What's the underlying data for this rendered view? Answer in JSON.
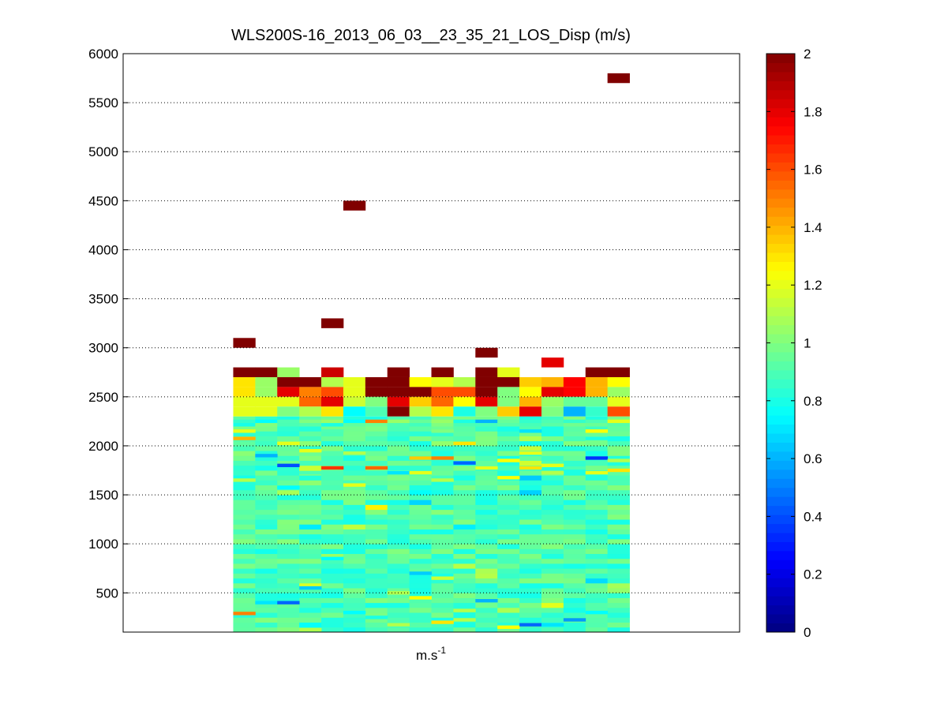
{
  "chart_data": {
    "type": "heatmap",
    "title": "WLS200S-16_2013_06_03__23_35_21_LOS_Disp (m/s)",
    "xlabel_base": "m.s",
    "xlabel_exp": "-1",
    "ylabel": "",
    "ylim": [
      100,
      6000
    ],
    "yticks": [
      500,
      1000,
      1500,
      2000,
      2500,
      3000,
      3500,
      4000,
      4500,
      5000,
      5500,
      6000
    ],
    "grid": true,
    "colormap": "jet",
    "clim": [
      0,
      2
    ],
    "colorbar_ticks": [
      0,
      0.2,
      0.4,
      0.6,
      0.8,
      1,
      1.2,
      1.4,
      1.6,
      1.8,
      2
    ],
    "n_columns": 18,
    "column_range": [
      5,
      23
    ],
    "x_range": [
      0,
      28
    ],
    "bulk_range": [
      100,
      2300
    ],
    "bulk_typical_value": 0.9,
    "cells": [
      [
        0,
        3050,
        2.0
      ],
      [
        4,
        3250,
        2.0
      ],
      [
        5,
        4450,
        2.0
      ],
      [
        11,
        2950,
        2.0
      ],
      [
        14,
        2850,
        1.8
      ],
      [
        17,
        5750,
        2.0
      ],
      [
        0,
        2750,
        2.0
      ],
      [
        1,
        2750,
        2.0
      ],
      [
        2,
        2750,
        1.05
      ],
      [
        3,
        2650,
        2.0
      ],
      [
        4,
        2750,
        1.85
      ],
      [
        7,
        2750,
        2.0
      ],
      [
        9,
        2750,
        2.0
      ],
      [
        11,
        2750,
        2.0
      ],
      [
        12,
        2750,
        1.2
      ],
      [
        16,
        2750,
        2.0
      ],
      [
        17,
        2750,
        2.0
      ],
      [
        0,
        2650,
        1.3
      ],
      [
        1,
        2650,
        1.05
      ],
      [
        2,
        2650,
        2.0
      ],
      [
        4,
        2650,
        1.1
      ],
      [
        5,
        2650,
        1.2
      ],
      [
        6,
        2650,
        2.0
      ],
      [
        7,
        2650,
        2.0
      ],
      [
        8,
        2650,
        1.25
      ],
      [
        9,
        2650,
        1.2
      ],
      [
        10,
        2650,
        1.1
      ],
      [
        11,
        2650,
        2.0
      ],
      [
        12,
        2650,
        2.0
      ],
      [
        13,
        2650,
        1.35
      ],
      [
        14,
        2650,
        1.4
      ],
      [
        15,
        2650,
        1.75
      ],
      [
        16,
        2650,
        1.4
      ],
      [
        17,
        2650,
        1.25
      ],
      [
        0,
        2550,
        1.3
      ],
      [
        1,
        2550,
        1.05
      ],
      [
        2,
        2550,
        1.8
      ],
      [
        3,
        2550,
        1.5
      ],
      [
        4,
        2550,
        1.6
      ],
      [
        5,
        2550,
        1.2
      ],
      [
        6,
        2550,
        2.0
      ],
      [
        7,
        2550,
        2.0
      ],
      [
        8,
        2550,
        2.0
      ],
      [
        9,
        2550,
        1.6
      ],
      [
        10,
        2550,
        1.6
      ],
      [
        11,
        2550,
        2.0
      ],
      [
        12,
        2550,
        1.0
      ],
      [
        13,
        2550,
        1.25
      ],
      [
        14,
        2550,
        1.8
      ],
      [
        15,
        2550,
        1.75
      ],
      [
        16,
        2550,
        1.4
      ],
      [
        17,
        2550,
        1.05
      ],
      [
        0,
        2450,
        1.2
      ],
      [
        1,
        2450,
        1.2
      ],
      [
        2,
        2450,
        1.2
      ],
      [
        3,
        2450,
        1.55
      ],
      [
        4,
        2450,
        1.8
      ],
      [
        5,
        2450,
        1.15
      ],
      [
        6,
        2450,
        1.0
      ],
      [
        7,
        2450,
        1.8
      ],
      [
        8,
        2450,
        1.35
      ],
      [
        9,
        2450,
        1.55
      ],
      [
        10,
        2450,
        1.25
      ],
      [
        11,
        2450,
        1.8
      ],
      [
        12,
        2450,
        1.0
      ],
      [
        13,
        2450,
        1.4
      ],
      [
        14,
        2450,
        1.05
      ],
      [
        15,
        2450,
        0.95
      ],
      [
        16,
        2450,
        0.95
      ],
      [
        17,
        2450,
        1.2
      ],
      [
        0,
        2350,
        1.2
      ],
      [
        1,
        2350,
        1.2
      ],
      [
        2,
        2350,
        1.0
      ],
      [
        3,
        2350,
        1.1
      ],
      [
        4,
        2350,
        1.3
      ],
      [
        5,
        2350,
        0.75
      ],
      [
        6,
        2350,
        0.9
      ],
      [
        7,
        2350,
        2.0
      ],
      [
        8,
        2350,
        1.1
      ],
      [
        9,
        2350,
        1.3
      ],
      [
        10,
        2350,
        0.8
      ],
      [
        11,
        2350,
        1.0
      ],
      [
        12,
        2350,
        1.35
      ],
      [
        13,
        2350,
        1.8
      ],
      [
        14,
        2350,
        1.0
      ],
      [
        15,
        2350,
        0.6
      ],
      [
        16,
        2350,
        0.85
      ],
      [
        17,
        2350,
        1.6
      ],
      [
        0,
        2250,
        0.85
      ],
      [
        1,
        2250,
        0.75
      ],
      [
        2,
        2250,
        0.9
      ],
      [
        3,
        2250,
        1.0
      ],
      [
        4,
        2250,
        1.05
      ],
      [
        5,
        2250,
        0.75
      ],
      [
        6,
        2250,
        1.5
      ],
      [
        7,
        2250,
        1.05
      ],
      [
        8,
        2250,
        0.95
      ],
      [
        9,
        2250,
        1.05
      ],
      [
        10,
        2250,
        0.8
      ],
      [
        11,
        2250,
        0.6
      ],
      [
        12,
        2250,
        0.95
      ],
      [
        13,
        2250,
        0.85
      ],
      [
        14,
        2250,
        0.9
      ],
      [
        15,
        2250,
        0.85
      ],
      [
        16,
        2250,
        0.9
      ],
      [
        17,
        2250,
        1.2
      ],
      [
        0,
        2150,
        1.2
      ],
      [
        4,
        2150,
        0.9
      ],
      [
        9,
        2150,
        1.0
      ],
      [
        13,
        2150,
        0.7
      ],
      [
        16,
        2150,
        1.25
      ],
      [
        0,
        2075,
        1.4
      ],
      [
        2,
        2025,
        1.2
      ],
      [
        10,
        2025,
        1.3
      ],
      [
        16,
        2075,
        0.8
      ],
      [
        1,
        1900,
        0.6
      ],
      [
        3,
        1950,
        1.2
      ],
      [
        5,
        1925,
        1.1
      ],
      [
        8,
        1875,
        1.35
      ],
      [
        9,
        1875,
        1.5
      ],
      [
        12,
        1850,
        1.25
      ],
      [
        13,
        1925,
        1.2
      ],
      [
        16,
        1875,
        0.35
      ],
      [
        17,
        1850,
        1.1
      ],
      [
        2,
        1800,
        0.4
      ],
      [
        4,
        1775,
        1.65
      ],
      [
        6,
        1775,
        1.55
      ],
      [
        7,
        1725,
        0.7
      ],
      [
        10,
        1825,
        0.45
      ],
      [
        11,
        1775,
        1.2
      ],
      [
        13,
        1775,
        1.3
      ],
      [
        14,
        1800,
        1.2
      ],
      [
        15,
        1775,
        0.9
      ],
      [
        17,
        1750,
        1.3
      ],
      [
        3,
        1725,
        0.9
      ],
      [
        8,
        1725,
        1.2
      ],
      [
        12,
        1675,
        1.25
      ],
      [
        14,
        1725,
        1.1
      ],
      [
        16,
        1725,
        1.2
      ],
      [
        0,
        1650,
        1.1
      ],
      [
        9,
        1650,
        1.1
      ],
      [
        5,
        1600,
        1.2
      ],
      [
        2,
        1575,
        0.75
      ],
      [
        4,
        850,
        0.75
      ],
      [
        8,
        700,
        0.65
      ],
      [
        9,
        650,
        1.15
      ],
      [
        3,
        550,
        0.65
      ],
      [
        7,
        500,
        1.1
      ],
      [
        8,
        450,
        1.25
      ],
      [
        1,
        400,
        0.7
      ],
      [
        2,
        400,
        0.45
      ],
      [
        11,
        420,
        0.6
      ],
      [
        5,
        300,
        0.75
      ],
      [
        16,
        300,
        0.75
      ],
      [
        10,
        320,
        1.1
      ],
      [
        0,
        290,
        1.5
      ],
      [
        6,
        250,
        0.8
      ],
      [
        10,
        225,
        1.1
      ],
      [
        12,
        150,
        1.25
      ],
      [
        13,
        175,
        0.45
      ],
      [
        15,
        225,
        0.55
      ],
      [
        14,
        175,
        0.7
      ],
      [
        7,
        175,
        1.1
      ],
      [
        3,
        125,
        1.1
      ],
      [
        9,
        200,
        1.3
      ]
    ]
  }
}
